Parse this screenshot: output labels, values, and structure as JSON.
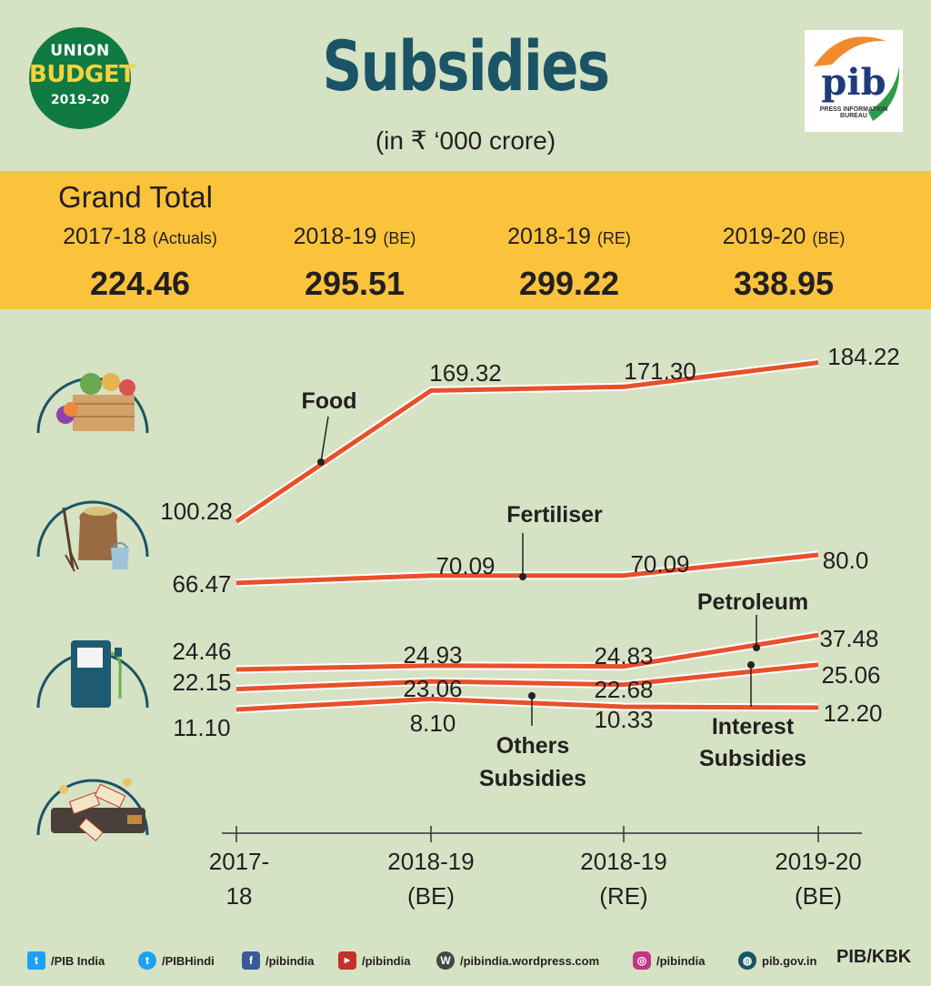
{
  "header": {
    "badge": {
      "line1": "UNION",
      "line2": "BUDGET",
      "line3": "2019-20"
    },
    "title": "Subsidies",
    "subtitle": "(in ₹ ‘000 crore)",
    "logo": {
      "text": "pib",
      "sub": "PRESS INFORMATION BUREAU"
    }
  },
  "grand_total": {
    "label": "Grand Total",
    "columns": [
      {
        "year": "2017-18",
        "tag": "(Actuals)",
        "value": "224.46"
      },
      {
        "year": "2018-19",
        "tag": "(BE)",
        "value": "295.51"
      },
      {
        "year": "2018-19",
        "tag": "(RE)",
        "value": "299.22"
      },
      {
        "year": "2019-20",
        "tag": "(BE)",
        "value": "338.95"
      }
    ]
  },
  "chart_data": {
    "type": "line",
    "x": [
      "2017-18",
      "2018-19 (BE)",
      "2018-19 (RE)",
      "2019-20 (BE)"
    ],
    "series": [
      {
        "name": "Food",
        "values": [
          100.28,
          169.32,
          171.3,
          184.22
        ]
      },
      {
        "name": "Fertiliser",
        "values": [
          66.47,
          70.09,
          70.09,
          80.0
        ]
      },
      {
        "name": "Petroleum",
        "values": [
          24.46,
          24.93,
          24.83,
          37.48
        ]
      },
      {
        "name": "Interest Subsidies",
        "values": [
          22.15,
          23.06,
          22.68,
          25.06
        ]
      },
      {
        "name": "Others Subsidies",
        "values": [
          11.1,
          8.1,
          10.33,
          12.2
        ]
      }
    ],
    "labels": [
      "100.28",
      "169.32",
      "171.30",
      "184.22",
      "66.47",
      "70.09",
      "70.09",
      "80.0",
      "24.46",
      "24.93",
      "24.83",
      "37.48",
      "22.15",
      "23.06",
      "22.68",
      "25.06",
      "11.10",
      "8.10",
      "10.33",
      "12.20"
    ],
    "x_tick_lines": [
      [
        "2017-",
        "18"
      ],
      [
        "2018-19",
        "(BE)"
      ],
      [
        "2018-19",
        "(RE)"
      ],
      [
        "2019-20",
        "(BE)"
      ]
    ],
    "series_labels": {
      "food": "Food",
      "fertiliser": "Fertiliser",
      "petroleum": "Petroleum",
      "interest": [
        "Interest",
        "Subsidies"
      ],
      "others": [
        "Others",
        "Subsidies"
      ]
    },
    "line_color": "#e8502a"
  },
  "icons": [
    "vegetable-basket-icon",
    "fertiliser-sack-icon",
    "fuel-pump-icon",
    "wallet-money-icon"
  ],
  "footer": {
    "items": [
      {
        "icon": "twitter-icon",
        "text": "/PIB India"
      },
      {
        "icon": "twitter-icon",
        "text": "/PIBHindi"
      },
      {
        "icon": "facebook-icon",
        "text": "/pibindia"
      },
      {
        "icon": "youtube-icon",
        "text": "/pibindia"
      },
      {
        "icon": "wordpress-icon",
        "text": "/pibindia.wordpress.com"
      },
      {
        "icon": "instagram-icon",
        "text": "/pibindia"
      },
      {
        "icon": "globe-icon",
        "text": "pib.gov.in"
      }
    ],
    "credit": "PIB/KBK"
  }
}
